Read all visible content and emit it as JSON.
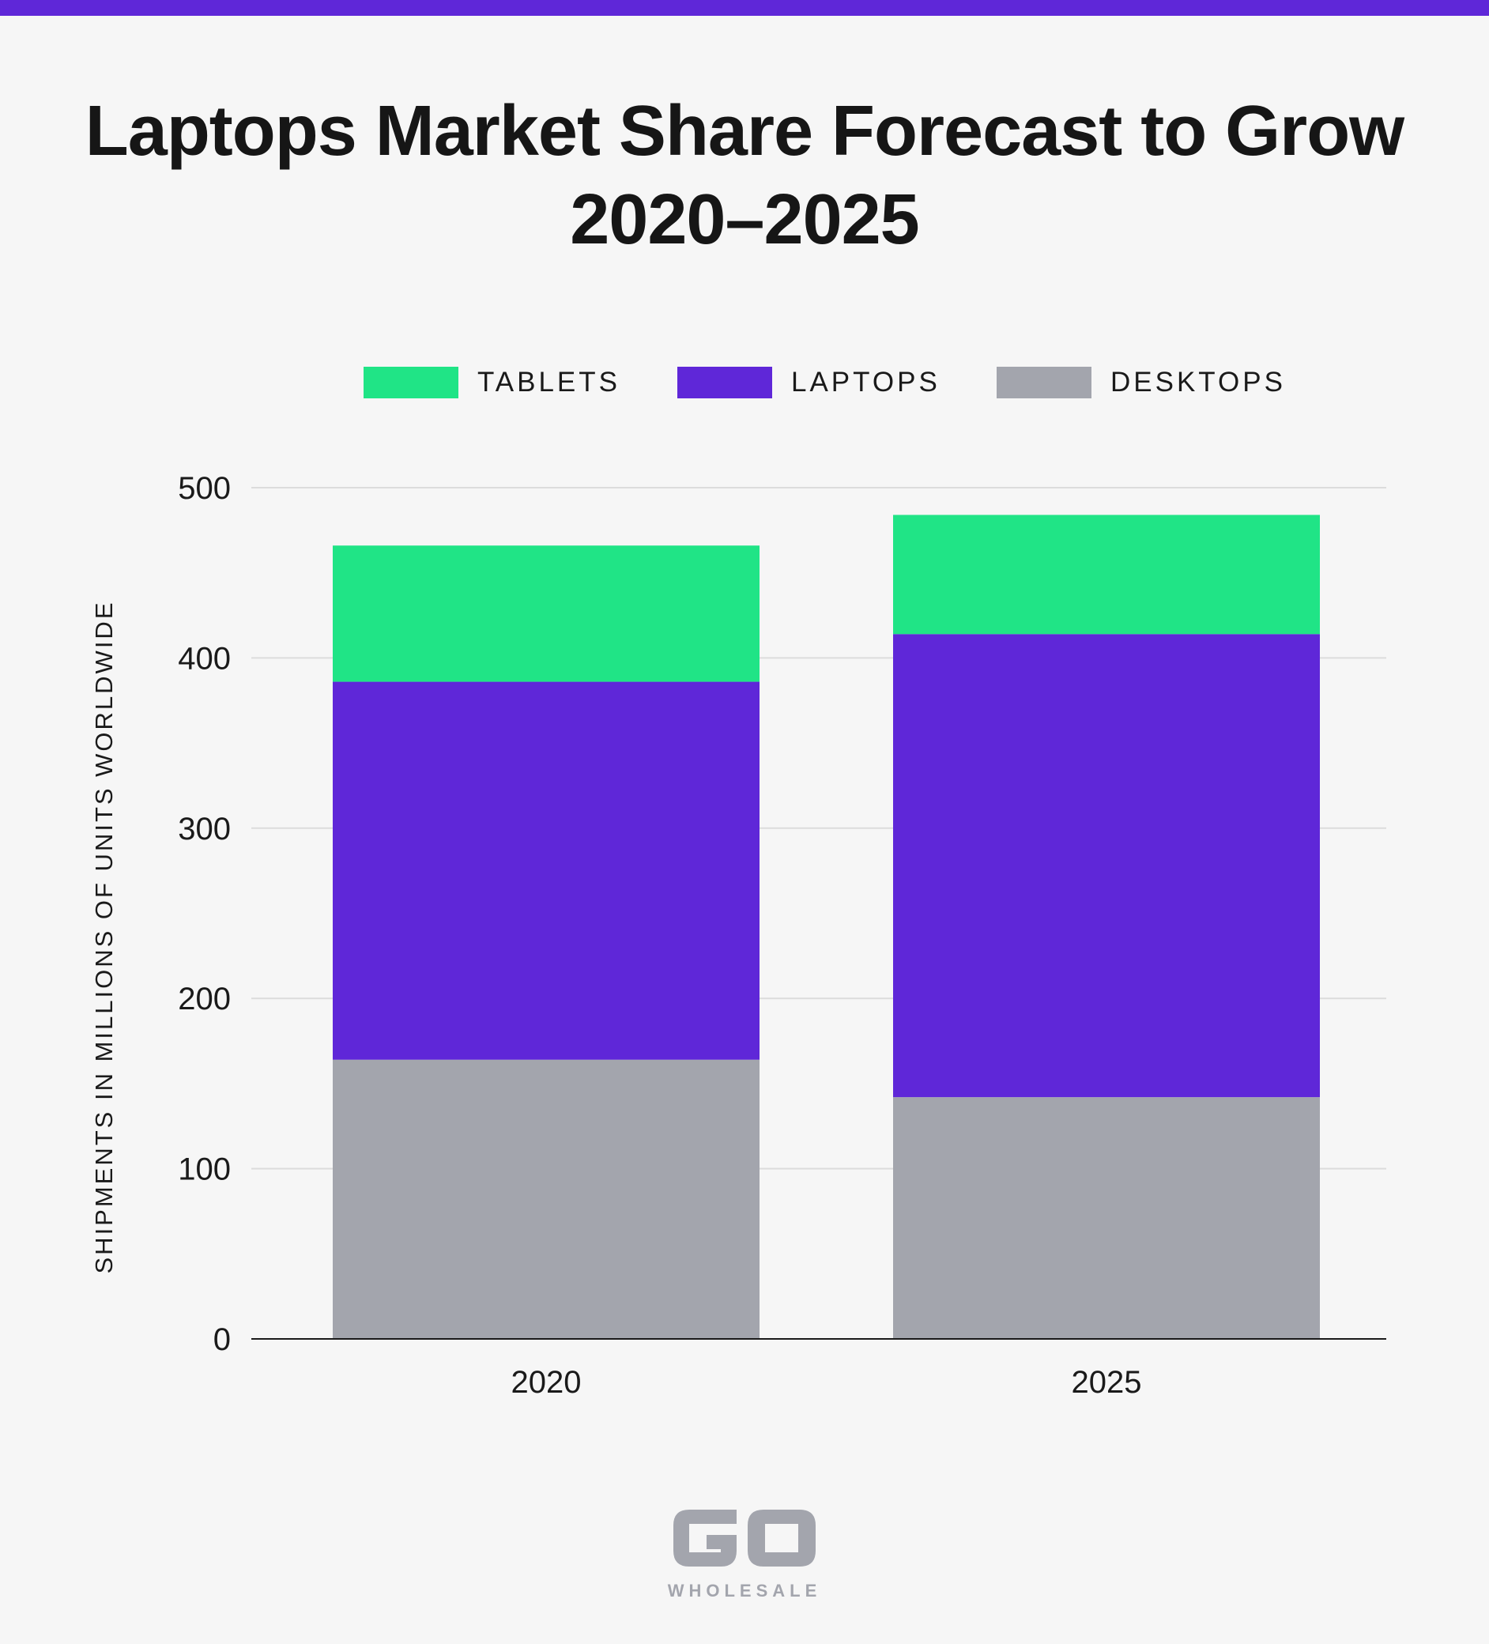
{
  "colors": {
    "accent_bar": "#5f27d8",
    "tablets": "#20e486",
    "laptops": "#5f27d8",
    "desktops": "#a3a5ad",
    "background": "#f6f6f6",
    "gridline": "#dcdcdc",
    "axis": "#1a1a1a",
    "logo": "#a3a5ad"
  },
  "title": {
    "line1": "Laptops Market Share Forecast to Grow",
    "line2": "2020–2025"
  },
  "legend": {
    "items": [
      {
        "label": "TABLETS",
        "color": "#20e486"
      },
      {
        "label": "LAPTOPS",
        "color": "#5f27d8"
      },
      {
        "label": "DESKTOPS",
        "color": "#a3a5ad"
      }
    ]
  },
  "chart_data": {
    "type": "bar",
    "stacked": true,
    "title": "Laptops Market Share Forecast to Grow 2020–2025",
    "xlabel": "",
    "ylabel": "SHIPMENTS IN MILLIONS OF UNITS WORLDWIDE",
    "categories": [
      "2020",
      "2025"
    ],
    "series": [
      {
        "name": "DESKTOPS",
        "color": "#a3a5ad",
        "values": [
          164,
          142
        ]
      },
      {
        "name": "LAPTOPS",
        "color": "#5f27d8",
        "values": [
          222,
          272
        ]
      },
      {
        "name": "TABLETS",
        "color": "#20e486",
        "values": [
          80,
          70
        ]
      }
    ],
    "ylim": [
      0,
      500
    ],
    "yticks": [
      0,
      100,
      200,
      300,
      400,
      500
    ],
    "grid": true,
    "legend_position": "top"
  },
  "logo": {
    "mark": "GO",
    "text": "WHOLESALE"
  }
}
